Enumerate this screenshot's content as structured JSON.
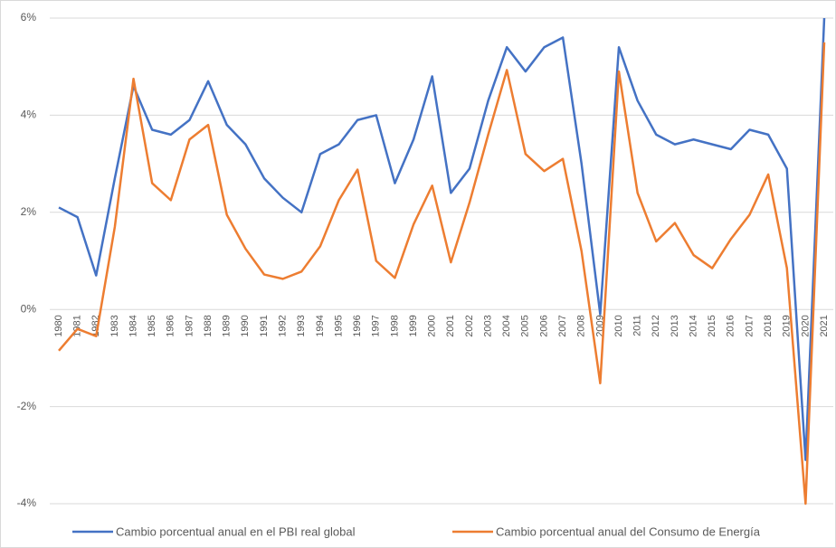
{
  "chart_data": {
    "type": "line",
    "categories": [
      "1980",
      "1981",
      "1982",
      "1983",
      "1984",
      "1985",
      "1986",
      "1987",
      "1988",
      "1989",
      "1990",
      "1991",
      "1992",
      "1993",
      "1994",
      "1995",
      "1996",
      "1997",
      "1998",
      "1999",
      "2000",
      "2001",
      "2002",
      "2003",
      "2004",
      "2005",
      "2006",
      "2007",
      "2008",
      "2009",
      "2010",
      "2011",
      "2012",
      "2013",
      "2014",
      "2015",
      "2016",
      "2017",
      "2018",
      "2019",
      "2020",
      "2021"
    ],
    "series": [
      {
        "name": "Cambio porcentual anual en el PBI real global",
        "color": "#4472c4",
        "values": [
          2.1,
          1.9,
          0.7,
          2.7,
          4.6,
          3.7,
          3.6,
          3.9,
          4.7,
          3.8,
          3.4,
          2.7,
          2.3,
          2.0,
          3.2,
          3.4,
          3.9,
          4.0,
          2.6,
          3.5,
          4.8,
          2.4,
          2.9,
          4.3,
          5.4,
          4.9,
          5.4,
          5.6,
          3.0,
          -0.1,
          5.4,
          4.3,
          3.6,
          3.4,
          3.5,
          3.4,
          3.3,
          3.7,
          3.6,
          2.9,
          -3.1,
          6.0
        ]
      },
      {
        "name": "Cambio porcentual anual del Consumo de Energía",
        "color": "#ed7d31",
        "values": [
          -0.85,
          -0.4,
          -0.55,
          1.7,
          4.75,
          2.6,
          2.25,
          3.5,
          3.8,
          1.95,
          1.25,
          0.72,
          0.63,
          0.78,
          1.3,
          2.25,
          2.88,
          1.0,
          0.65,
          1.75,
          2.55,
          0.97,
          2.2,
          3.6,
          4.93,
          3.2,
          2.85,
          3.1,
          1.2,
          -1.52,
          4.9,
          2.4,
          1.4,
          1.78,
          1.12,
          0.85,
          1.45,
          1.95,
          2.78,
          0.85,
          -4.0,
          5.5
        ]
      }
    ],
    "ylim": [
      -4,
      6
    ],
    "yticks": [
      {
        "value": -4,
        "label": "-4%"
      },
      {
        "value": -2,
        "label": "-2%"
      },
      {
        "value": 0,
        "label": "0%"
      },
      {
        "value": 2,
        "label": "2%"
      },
      {
        "value": 4,
        "label": "4%"
      },
      {
        "value": 6,
        "label": "6%"
      }
    ],
    "grid": true,
    "legend": "bottom"
  }
}
